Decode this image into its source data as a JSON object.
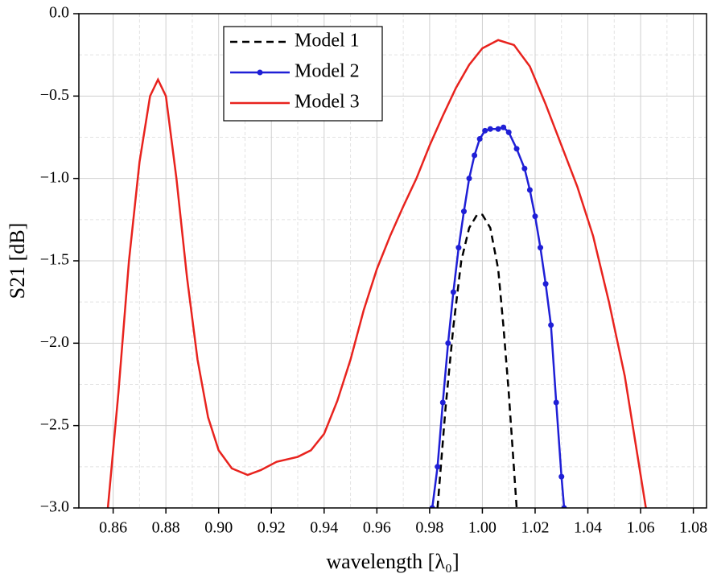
{
  "chart_data": {
    "type": "line",
    "x_label": "wavelength [λ₀]",
    "y_label": "S21 [dB]",
    "xlim": [
      0.847,
      1.085
    ],
    "ylim": [
      -3.0,
      0.0
    ],
    "xticks": [
      0.86,
      0.88,
      {
        "value": 0.9,
        "label": "0.90"
      },
      0.92,
      0.94,
      0.96,
      0.98,
      {
        "value": 1.0,
        "label": "1.00"
      },
      1.02,
      1.04,
      1.06,
      1.08
    ],
    "yticks": [
      {
        "value": 0.0,
        "label": "0.0"
      },
      {
        "value": -0.5,
        "label": "−0.5"
      },
      {
        "value": -1.0,
        "label": "−1.0"
      },
      {
        "value": -1.5,
        "label": "−1.5"
      },
      {
        "value": -2.0,
        "label": "−2.0"
      },
      {
        "value": -2.5,
        "label": "−2.5"
      },
      {
        "value": -3.0,
        "label": "−3.0"
      }
    ],
    "grid": true,
    "legend": "upper-left",
    "series": [
      {
        "name": "Model 1",
        "color": "#000000",
        "dashed": true,
        "markers": false,
        "x": [
          0.983,
          0.986,
          0.989,
          0.992,
          0.995,
          0.998,
          1.0,
          1.003,
          1.006,
          1.008,
          1.01,
          1.013
        ],
        "values": [
          -3.0,
          -2.4,
          -1.9,
          -1.5,
          -1.3,
          -1.22,
          -1.22,
          -1.3,
          -1.55,
          -1.9,
          -2.3,
          -3.0
        ]
      },
      {
        "name": "Model 2",
        "color": "#1f1fd6",
        "dashed": false,
        "markers": true,
        "x": [
          0.981,
          0.983,
          0.985,
          0.987,
          0.989,
          0.991,
          0.993,
          0.995,
          0.997,
          0.999,
          1.001,
          1.003,
          1.006,
          1.008,
          1.01,
          1.013,
          1.016,
          1.018,
          1.02,
          1.022,
          1.024,
          1.026,
          1.028,
          1.03,
          1.031
        ],
        "values": [
          -3.0,
          -2.75,
          -2.36,
          -2.0,
          -1.69,
          -1.42,
          -1.2,
          -1.0,
          -0.86,
          -0.76,
          -0.71,
          -0.7,
          -0.7,
          -0.69,
          -0.72,
          -0.82,
          -0.94,
          -1.07,
          -1.23,
          -1.42,
          -1.64,
          -1.89,
          -2.36,
          -2.81,
          -3.0
        ]
      },
      {
        "name": "Model 3",
        "color": "#e8231e",
        "dashed": false,
        "markers": false,
        "x": [
          0.858,
          0.862,
          0.866,
          0.87,
          0.874,
          0.877,
          0.88,
          0.884,
          0.888,
          0.892,
          0.896,
          0.9,
          0.905,
          0.911,
          0.916,
          0.922,
          0.93,
          0.935,
          0.94,
          0.945,
          0.95,
          0.955,
          0.96,
          0.965,
          0.97,
          0.975,
          0.98,
          0.985,
          0.99,
          0.995,
          1.0,
          1.006,
          1.012,
          1.018,
          1.024,
          1.03,
          1.036,
          1.042,
          1.048,
          1.054,
          1.058,
          1.062
        ],
        "values": [
          -3.0,
          -2.3,
          -1.5,
          -0.9,
          -0.5,
          -0.4,
          -0.5,
          -1.0,
          -1.6,
          -2.1,
          -2.45,
          -2.65,
          -2.76,
          -2.8,
          -2.77,
          -2.72,
          -2.69,
          -2.65,
          -2.55,
          -2.35,
          -2.1,
          -1.8,
          -1.55,
          -1.35,
          -1.17,
          -1.0,
          -0.8,
          -0.62,
          -0.45,
          -0.31,
          -0.21,
          -0.16,
          -0.19,
          -0.32,
          -0.55,
          -0.8,
          -1.05,
          -1.35,
          -1.75,
          -2.2,
          -2.6,
          -3.0
        ]
      }
    ]
  }
}
